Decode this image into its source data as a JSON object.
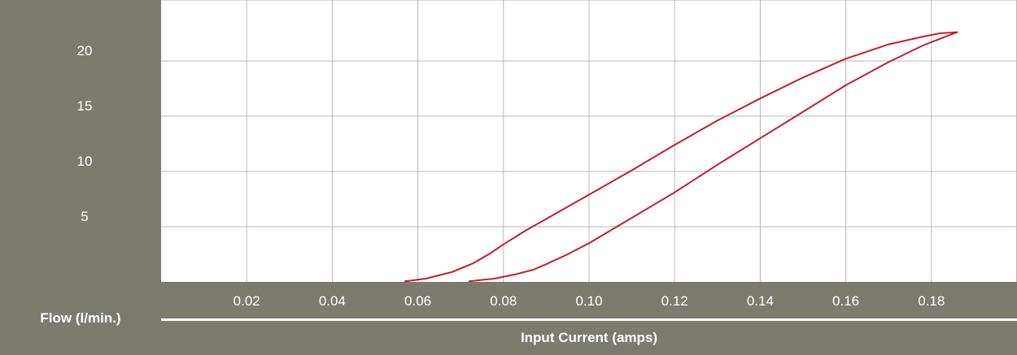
{
  "colors": {
    "panel": "#7d7b70",
    "grid": "#b8b8b8",
    "curve": "#c0202e",
    "text": "#ffffff"
  },
  "chart_data": {
    "type": "line",
    "title": "",
    "xlabel": "Input Current (amps)",
    "ylabel": "Flow (l/min.)",
    "xlim": [
      0.0,
      0.2
    ],
    "ylim": [
      0,
      25
    ],
    "x_ticks": [
      "0.02",
      "0.04",
      "0.06",
      "0.08",
      "0.10",
      "0.12",
      "0.14",
      "0.16",
      "0.18"
    ],
    "y_ticks": [
      "5",
      "10",
      "15",
      "20"
    ],
    "grid": true,
    "series": [
      {
        "x": [
          0.057,
          0.062,
          0.068,
          0.073,
          0.077,
          0.08,
          0.085,
          0.09,
          0.1,
          0.11,
          0.12,
          0.13,
          0.14,
          0.15,
          0.16,
          0.17,
          0.178,
          0.182,
          0.186
        ],
        "y": [
          0.05,
          0.3,
          0.9,
          1.7,
          2.6,
          3.4,
          4.6,
          5.7,
          7.9,
          10.1,
          12.4,
          14.6,
          16.6,
          18.5,
          20.2,
          21.5,
          22.2,
          22.5,
          22.6
        ]
      },
      {
        "x": [
          0.072,
          0.078,
          0.083,
          0.087,
          0.09,
          0.095,
          0.1,
          0.11,
          0.12,
          0.13,
          0.14,
          0.15,
          0.16,
          0.17,
          0.178,
          0.182,
          0.186
        ],
        "y": [
          0.05,
          0.3,
          0.7,
          1.1,
          1.6,
          2.5,
          3.5,
          5.8,
          8.1,
          10.6,
          13.0,
          15.4,
          17.8,
          19.9,
          21.4,
          22.0,
          22.6
        ]
      }
    ]
  }
}
